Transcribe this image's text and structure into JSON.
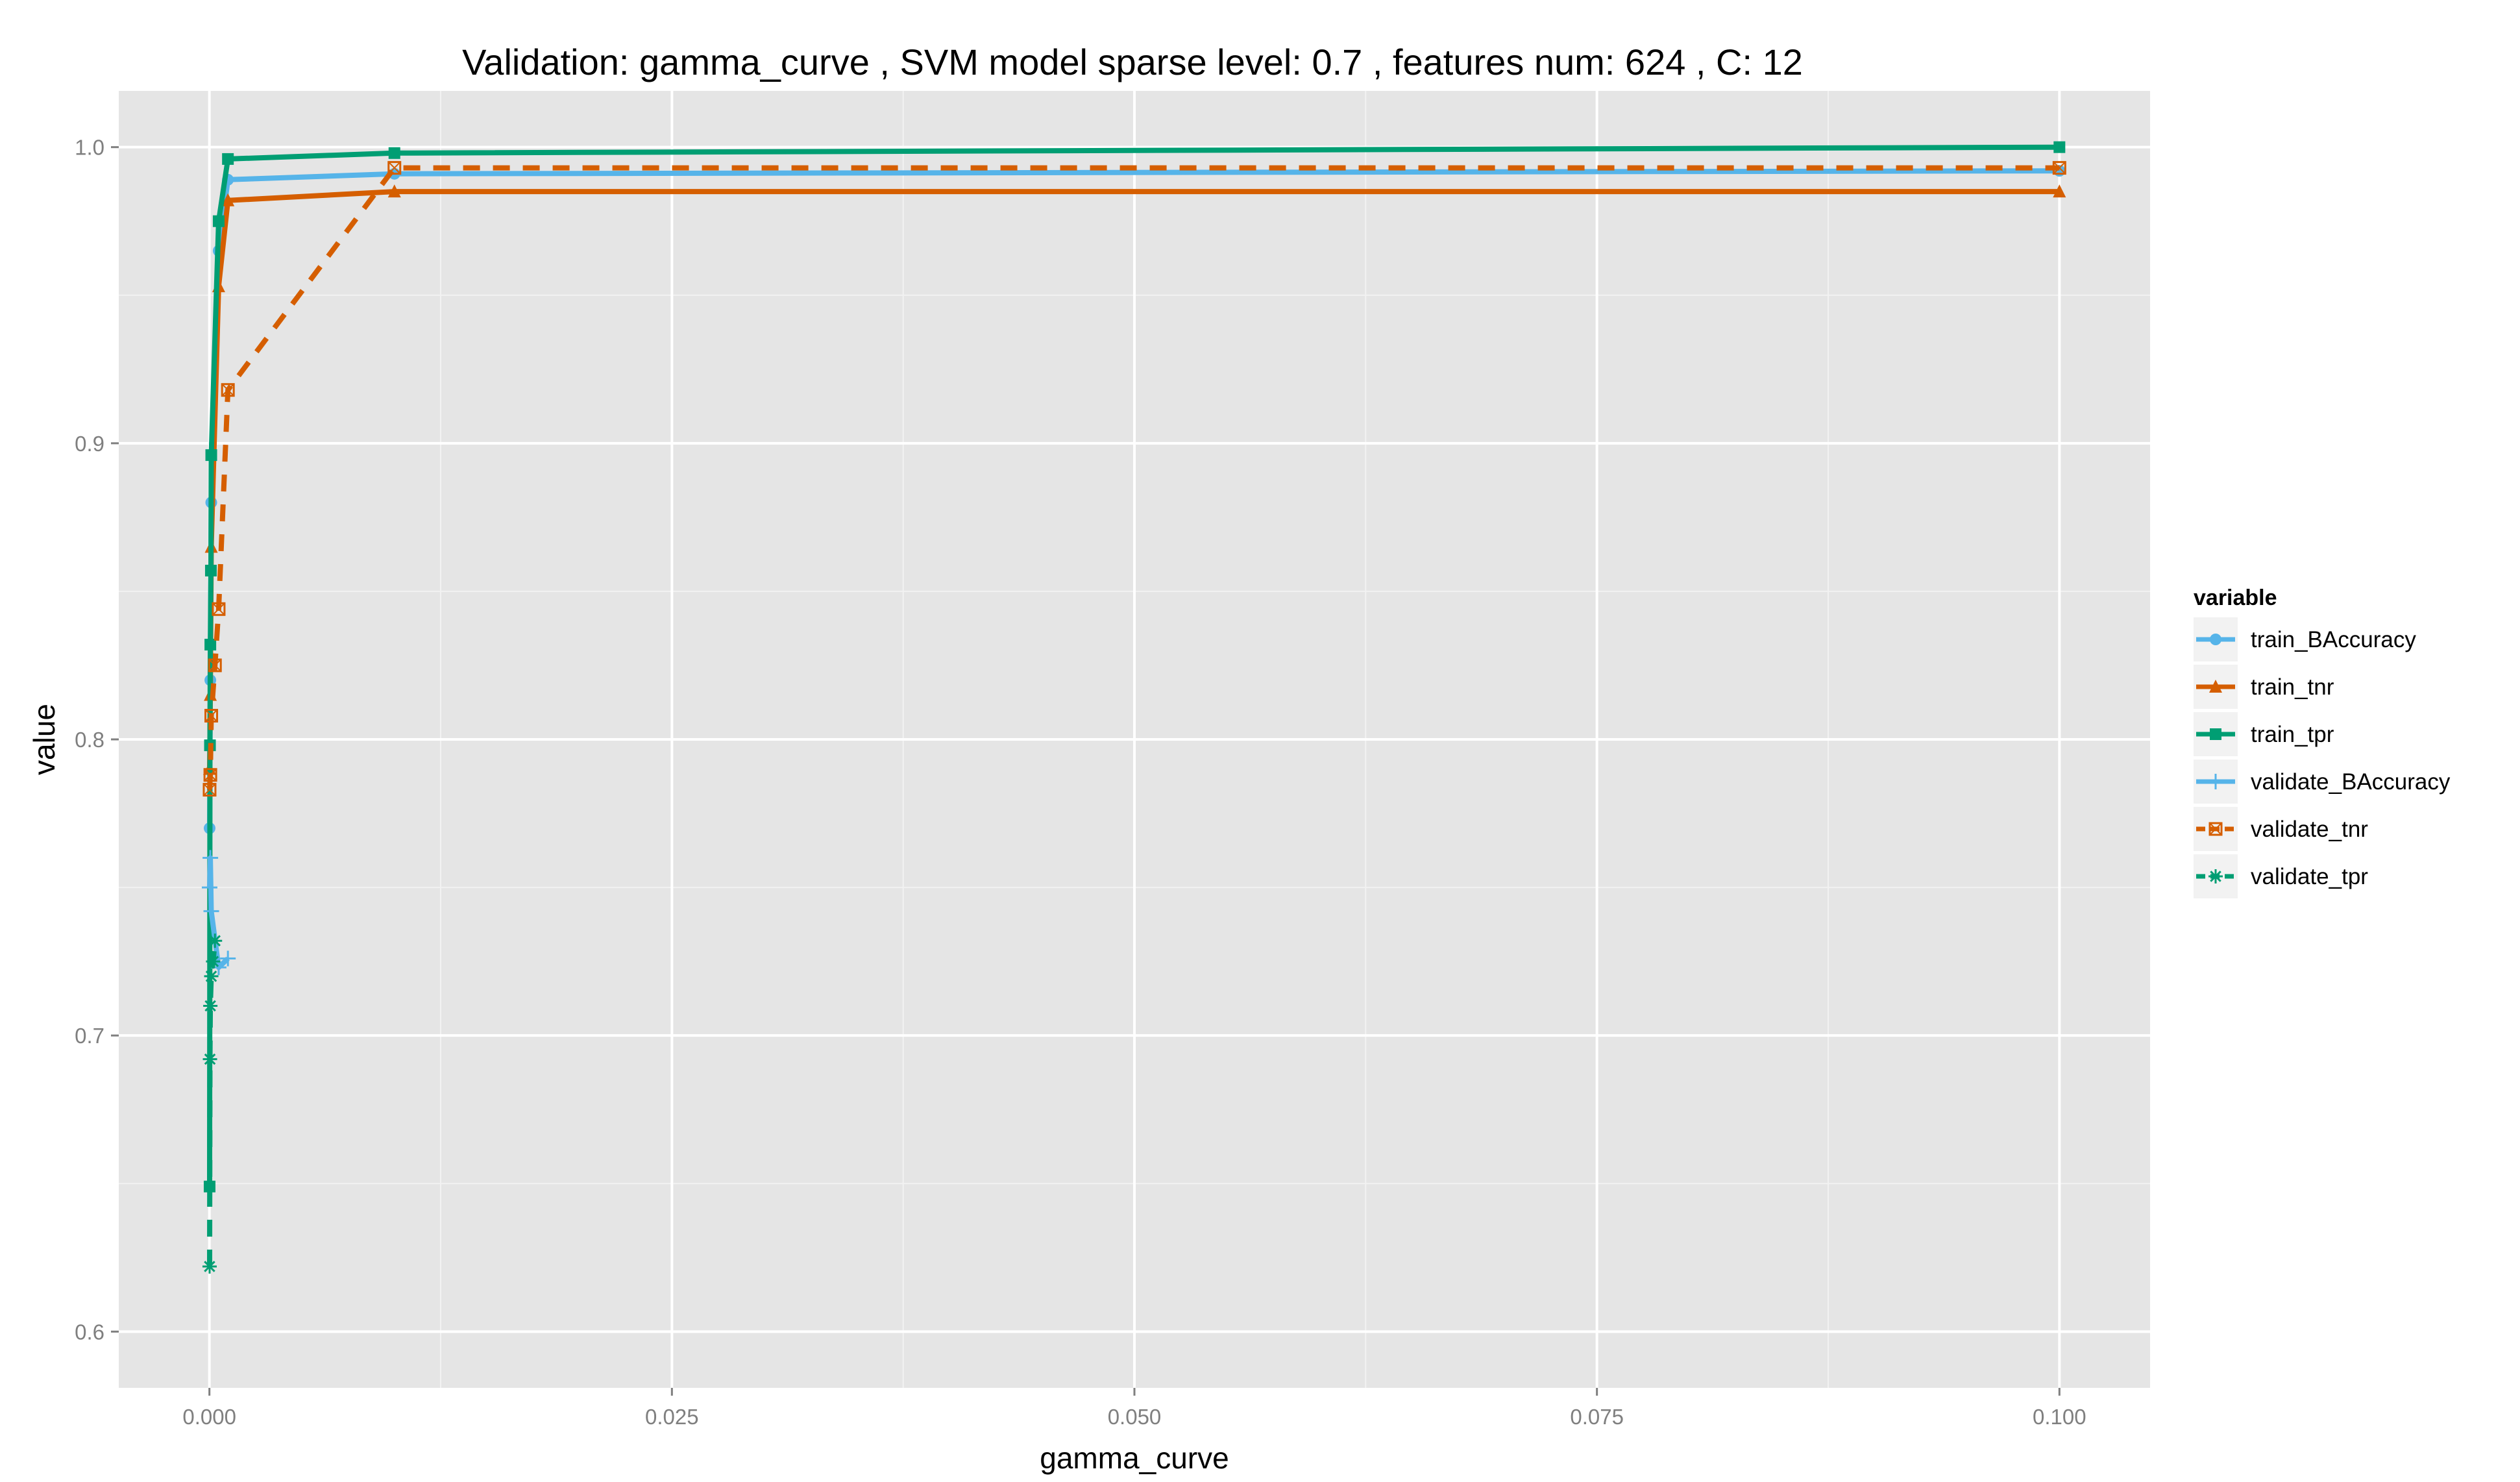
{
  "chart_data": {
    "type": "line",
    "title": "Validation:  gamma_curve ,  SVM model sparse level: 0.7 , features num: 624 , C:  12",
    "xlabel": "gamma_curve",
    "ylabel": "value",
    "xlim": [
      -0.0049,
      0.1049
    ],
    "ylim": [
      0.581,
      1.019
    ],
    "x_ticks": [
      0,
      0.025,
      0.05,
      0.075,
      0.1
    ],
    "x_tick_labels": [
      "0.000",
      "0.025",
      "0.050",
      "0.075",
      "0.100"
    ],
    "y_ticks": [
      0.6,
      0.7,
      0.8,
      0.9,
      1.0
    ],
    "y_tick_labels": [
      "0.6",
      "0.7",
      "0.8",
      "0.9",
      "1.0"
    ],
    "grid": true,
    "legend": {
      "title": "variable",
      "placement": "right"
    },
    "series": [
      {
        "name": "train_BAccuracy",
        "color": "#56B4E9",
        "linetype": "solid",
        "marker": "circle",
        "points": [
          [
            1e-05,
            0.77
          ],
          [
            5e-05,
            0.82
          ],
          [
            0.0001,
            0.88
          ],
          [
            0.0005,
            0.965
          ],
          [
            0.001,
            0.989
          ],
          [
            0.01,
            0.991
          ],
          [
            0.1,
            0.992
          ]
        ]
      },
      {
        "name": "train_tnr",
        "color": "#D55E00",
        "linetype": "solid",
        "marker": "triangle",
        "points": [
          [
            1e-05,
            0.79
          ],
          [
            5e-05,
            0.815
          ],
          [
            0.0001,
            0.865
          ],
          [
            0.0005,
            0.953
          ],
          [
            0.001,
            0.982
          ],
          [
            0.01,
            0.985
          ],
          [
            0.1,
            0.985
          ]
        ]
      },
      {
        "name": "train_tpr",
        "color": "#009E73",
        "linetype": "solid",
        "marker": "square",
        "points": [
          [
            1e-05,
            0.649
          ],
          [
            3e-05,
            0.798
          ],
          [
            5e-05,
            0.832
          ],
          [
            8e-05,
            0.857
          ],
          [
            0.0001,
            0.896
          ],
          [
            0.0005,
            0.975
          ],
          [
            0.001,
            0.996
          ],
          [
            0.01,
            0.998
          ],
          [
            0.1,
            1.0
          ]
        ]
      },
      {
        "name": "validate_BAccuracy",
        "color": "#56B4E9",
        "linetype": "solid",
        "marker": "plus",
        "points": [
          [
            1e-05,
            0.75
          ],
          [
            5e-05,
            0.76
          ],
          [
            0.0001,
            0.742
          ],
          [
            0.0005,
            0.723
          ],
          [
            0.001,
            0.726
          ]
        ]
      },
      {
        "name": "validate_tnr",
        "color": "#D55E00",
        "linetype": "dashed",
        "marker": "square-cross",
        "points": [
          [
            1e-05,
            0.783
          ],
          [
            5e-05,
            0.788
          ],
          [
            0.0001,
            0.808
          ],
          [
            0.0003,
            0.825
          ],
          [
            0.0005,
            0.844
          ],
          [
            0.001,
            0.918
          ],
          [
            0.01,
            0.993
          ],
          [
            0.1,
            0.993
          ]
        ]
      },
      {
        "name": "validate_tpr",
        "color": "#009E73",
        "linetype": "dashed",
        "marker": "asterisk",
        "points": [
          [
            1e-05,
            0.622
          ],
          [
            3e-05,
            0.692
          ],
          [
            5e-05,
            0.71
          ],
          [
            0.0001,
            0.72
          ],
          [
            0.0002,
            0.725
          ],
          [
            0.0003,
            0.732
          ]
        ]
      }
    ]
  }
}
